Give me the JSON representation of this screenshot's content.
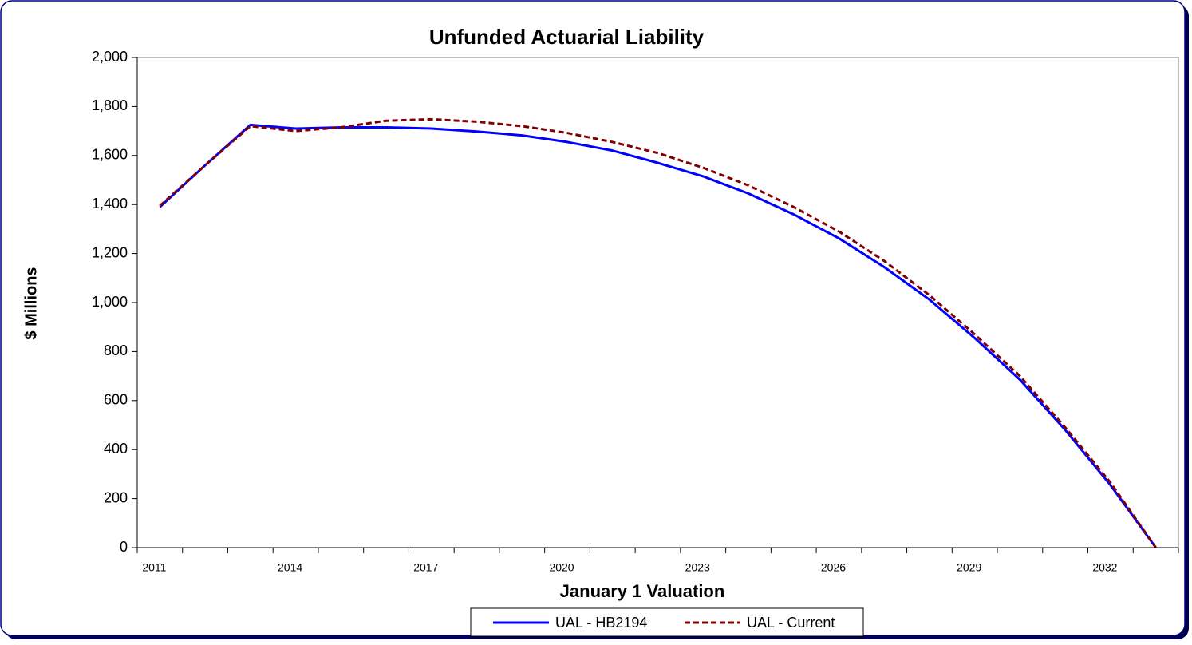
{
  "chart_data": {
    "type": "line",
    "title": "Unfunded Actuarial Liability",
    "x_label": "January 1 Valuation",
    "y_label": "$ Millions",
    "categories": [
      "2011",
      null,
      null,
      "2014",
      null,
      null,
      "2017",
      null,
      null,
      "2020",
      null,
      null,
      "2023",
      null,
      null,
      "2026",
      null,
      null,
      "2029",
      null,
      null,
      "2032",
      null
    ],
    "series": [
      {
        "name": "UAL - HB2194",
        "color": "#0000ff",
        "dash": false,
        "values": [
          1390,
          1560,
          1725,
          1710,
          1715,
          1715,
          1710,
          1698,
          1682,
          1655,
          1620,
          1570,
          1515,
          1445,
          1360,
          1262,
          1145,
          1012,
          855,
          685,
          480,
          255,
          0
        ]
      },
      {
        "name": "UAL - Current",
        "color": "#800000",
        "dash": true,
        "values": [
          1395,
          1560,
          1720,
          1700,
          1715,
          1742,
          1748,
          1738,
          1720,
          1692,
          1655,
          1610,
          1550,
          1478,
          1390,
          1290,
          1170,
          1030,
          870,
          700,
          490,
          265,
          0
        ]
      }
    ],
    "ylim": [
      0,
      2000
    ],
    "yticks": [
      0,
      200,
      400,
      600,
      800,
      {
        "value": 1000,
        "label": "1,000"
      },
      {
        "value": 1200,
        "label": "1,200"
      },
      {
        "value": 1400,
        "label": "1,400"
      },
      {
        "value": 1600,
        "label": "1,600"
      },
      {
        "value": 1800,
        "label": "1,800"
      },
      {
        "value": 2000,
        "label": "2,000"
      }
    ],
    "grid": false,
    "legend": "bottom"
  }
}
